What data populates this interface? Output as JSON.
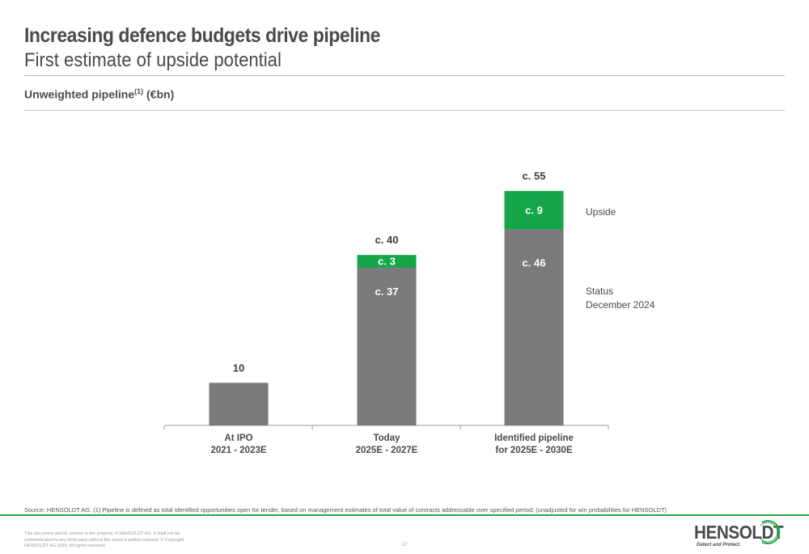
{
  "header": {
    "title": "Increasing defence budgets drive pipeline",
    "subtitle": "First estimate of upside potential",
    "section_label": "Unweighted pipeline",
    "section_sup": "(1)",
    "section_unit": " (€bn)"
  },
  "chart_data": {
    "type": "bar",
    "stacked": true,
    "categories": [
      [
        "At IPO",
        "2021 - 2023E"
      ],
      [
        "Today",
        "2025E - 2027E"
      ],
      [
        "Identified pipeline",
        "for 2025E - 2030E"
      ]
    ],
    "series": [
      {
        "name": "Status December 2024",
        "values": [
          10,
          37,
          46
        ],
        "labels": [
          "",
          "c. 37",
          "c. 46"
        ],
        "color": "#7a7a7a"
      },
      {
        "name": "Upside",
        "values": [
          0,
          3,
          9
        ],
        "labels": [
          "",
          "c. 3",
          "c. 9"
        ],
        "color": "#16a64a"
      }
    ],
    "totals": [
      "10",
      "c. 40",
      "c. 55"
    ],
    "legend": [
      "Upside",
      "Status",
      "December 2024"
    ],
    "ylim": [
      0,
      60
    ]
  },
  "footer": {
    "source": "Source: HENSOLDT AG. (1) Pipeline is defined as total identified opportunities open for tender, based on management estimates of total value of contracts addressable over specified period; (unadjusted for win probabilities for HENSOLDT)",
    "legal": "This document and its content is the property of HENSOLDT AG. It shall not be communicated to any third party without the owner's written consent. © Copyright HENSOLDT AG 2025. All rights reserved.",
    "page_number": "17",
    "logo_text": "HENSOLDT",
    "logo_tagline": "Detect and Protect."
  },
  "colors": {
    "accent": "#16a64a",
    "bar_grey": "#7a7a7a",
    "footer_rule": "#2aa84a"
  }
}
